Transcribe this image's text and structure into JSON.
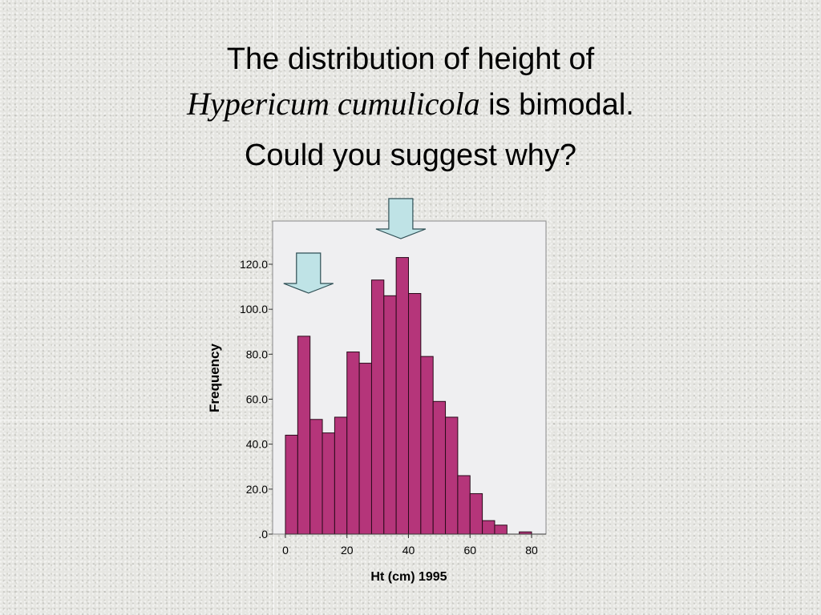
{
  "slide": {
    "title_line1": "The distribution of height of",
    "species_name": "Hypericum cumulicola",
    "title_line2_rest": " is bimodal.",
    "question": "Could you suggest why?"
  },
  "colors": {
    "bar_fill": "#b5357a",
    "bar_stroke": "#2a0a1a",
    "plot_background": "#efeff1",
    "arrow_fill": "#bfe3e6",
    "arrow_stroke": "#2f4f55"
  },
  "arrows": [
    {
      "name": "left-mode-arrow",
      "points_to_x": 7.5
    },
    {
      "name": "right-mode-arrow",
      "points_to_x": 37.5
    }
  ],
  "chart_data": {
    "type": "bar",
    "bin_width": 4,
    "bin_starts": [
      0,
      4,
      8,
      12,
      16,
      20,
      24,
      28,
      32,
      36,
      40,
      44,
      48,
      52,
      56,
      60,
      64,
      68,
      72,
      76
    ],
    "values": [
      44,
      88,
      51,
      45,
      52,
      81,
      76,
      113,
      106,
      123,
      107,
      79,
      59,
      52,
      26,
      18,
      6,
      4,
      0,
      1
    ],
    "xlabel": "Ht (cm) 1995",
    "ylabel": "Frequency",
    "xlim": [
      0,
      80
    ],
    "ylim": [
      0,
      120
    ],
    "x_ticks": [
      "0",
      "20",
      "40",
      "60",
      "80"
    ],
    "x_tick_values": [
      0,
      20,
      40,
      60,
      80
    ],
    "y_ticks": [
      ".0",
      "20.0",
      "40.0",
      "60.0",
      "80.0",
      "100.0",
      "120.0"
    ],
    "y_tick_values": [
      0,
      20,
      40,
      60,
      80,
      100,
      120
    ],
    "grid": false
  }
}
